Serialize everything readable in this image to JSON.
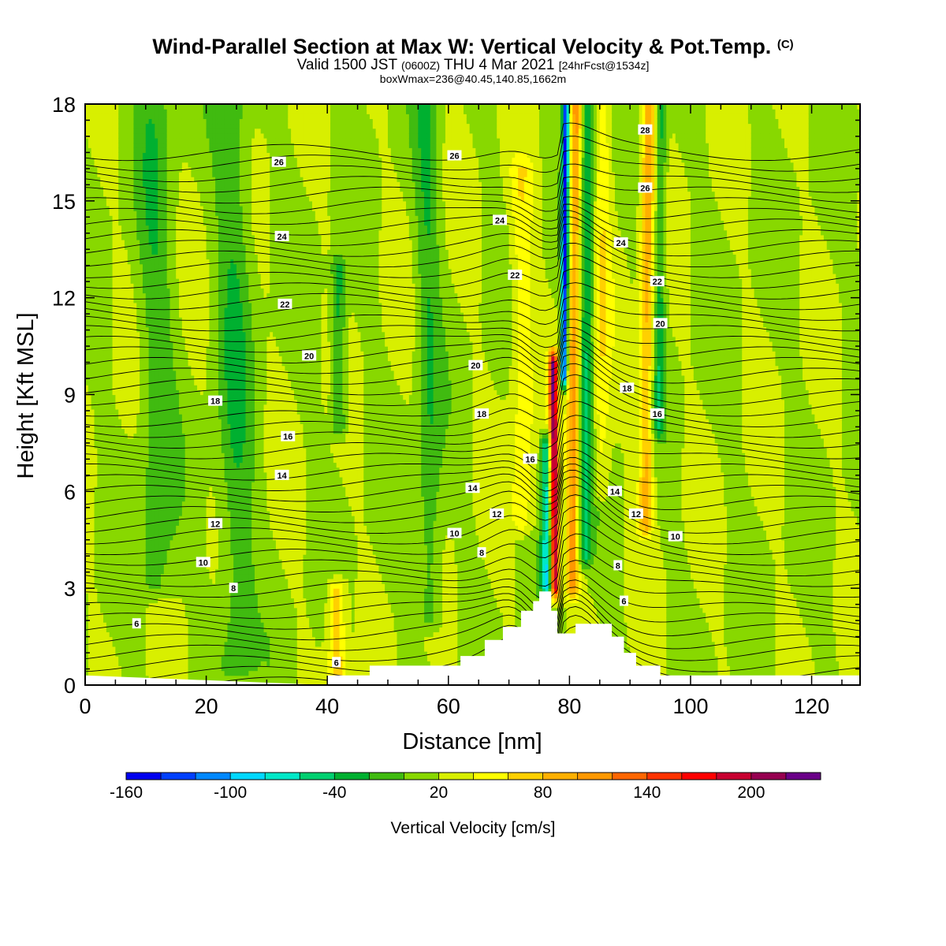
{
  "titles": {
    "main": "Wind-Parallel Section at Max W: Vertical Velocity & Pot.Temp.",
    "main_suffix": "(C)",
    "valid_a": "Valid 1500 JST",
    "valid_zulu": "(0600Z)",
    "valid_b": "THU 4 Mar 2021",
    "valid_fcst": "[24hrFcst@1534z]",
    "box": "boxWmax=236@40.45,140.85,1662m"
  },
  "chart_data": {
    "type": "heatmap",
    "title": "Wind-Parallel Section at Max W: Vertical Velocity & Pot.Temp.",
    "xlabel": "Distance [nm]",
    "ylabel": "Height [Kft MSL]",
    "xlim": [
      0,
      128
    ],
    "ylim": [
      0,
      18
    ],
    "xticks": [
      0,
      20,
      40,
      60,
      80,
      100,
      120
    ],
    "yticks": [
      0,
      3,
      6,
      9,
      12,
      15,
      18
    ],
    "colorbar": {
      "label": "Vertical Velocity [cm/s]",
      "levels": [
        -160,
        -140,
        -120,
        -100,
        -80,
        -60,
        -40,
        -20,
        0,
        20,
        40,
        60,
        80,
        100,
        120,
        140,
        160,
        180,
        200,
        220,
        240
      ],
      "tick_labels": [
        "-160",
        "-100",
        "-40",
        "20",
        "80",
        "140",
        "200"
      ],
      "tick_values": [
        -160,
        -100,
        -40,
        20,
        80,
        140,
        200
      ],
      "colors": [
        "#0000ef",
        "#0040ff",
        "#0088ff",
        "#00d8ff",
        "#00e8c8",
        "#00d070",
        "#00b030",
        "#40bb10",
        "#88d800",
        "#d8ef00",
        "#ffff00",
        "#ffd000",
        "#ffb000",
        "#ff9800",
        "#ff6600",
        "#ff3300",
        "#ff0000",
        "#c80030",
        "#960050",
        "#6a0088"
      ]
    },
    "terrain": [
      [
        40,
        0.3
      ],
      [
        47,
        0.3
      ],
      [
        47,
        0.6
      ],
      [
        62,
        0.6
      ],
      [
        62,
        0.9
      ],
      [
        66,
        0.9
      ],
      [
        66,
        1.4
      ],
      [
        69,
        1.4
      ],
      [
        69,
        1.8
      ],
      [
        72,
        1.8
      ],
      [
        72,
        2.3
      ],
      [
        74,
        2.3
      ],
      [
        74,
        2.6
      ],
      [
        75,
        2.6
      ],
      [
        75,
        2.9
      ],
      [
        77,
        2.9
      ],
      [
        77,
        2.3
      ],
      [
        78,
        2.3
      ],
      [
        78,
        1.6
      ],
      [
        81,
        1.6
      ],
      [
        81,
        1.9
      ],
      [
        87,
        1.9
      ],
      [
        87,
        1.5
      ],
      [
        89,
        1.5
      ],
      [
        89,
        1.0
      ],
      [
        91,
        1.0
      ],
      [
        91,
        0.6
      ],
      [
        95,
        0.6
      ],
      [
        95,
        0.3
      ],
      [
        128,
        0.3
      ]
    ],
    "velocity_bands": [
      {
        "x": 78.8,
        "w": 0.55,
        "amp": -160,
        "zmin": 9.5,
        "zmax": 18
      },
      {
        "x": 77.6,
        "w": 0.7,
        "amp": 190,
        "zmin": 3,
        "zmax": 10
      },
      {
        "x": 76.3,
        "w": 0.9,
        "amp": -90,
        "zmin": 3,
        "zmax": 7.5
      },
      {
        "x": 80.5,
        "w": 1.0,
        "amp": 90,
        "zmin": 3,
        "zmax": 18
      },
      {
        "x": 82.5,
        "w": 1.2,
        "amp": -60,
        "zmin": 4,
        "zmax": 18
      },
      {
        "x": 92.5,
        "w": 1.2,
        "amp": 70,
        "zmin": 5,
        "zmax": 18
      },
      {
        "x": 94.5,
        "w": 1.0,
        "amp": -50,
        "zmin": 8,
        "zmax": 18
      },
      {
        "x": 85,
        "w": 1.5,
        "amp": 35,
        "zmin": 6,
        "zmax": 18
      },
      {
        "x": 72.5,
        "w": 2.0,
        "amp": 35,
        "zmin": 5,
        "zmax": 16
      },
      {
        "x": 41.5,
        "w": 1.5,
        "amp": 60,
        "zmin": 0.3,
        "zmax": 3
      },
      {
        "x": 42.2,
        "w": 1.2,
        "amp": -50,
        "zmin": 8,
        "zmax": 13
      },
      {
        "x": 25,
        "w": 3.0,
        "amp": -35,
        "zmin": 0.5,
        "zmax": 18
      },
      {
        "x": 12,
        "w": 3.0,
        "amp": -30,
        "zmin": 3,
        "zmax": 18
      },
      {
        "x": 57,
        "w": 2.0,
        "amp": -35,
        "zmin": 2,
        "zmax": 18
      }
    ],
    "theta_contours": {
      "levels_c": [
        6,
        8,
        10,
        12,
        14,
        16,
        18,
        20,
        22,
        24,
        26,
        28
      ],
      "labels": [
        {
          "text": "6",
          "x": 8.5,
          "z": 1.9
        },
        {
          "text": "8",
          "x": 24.5,
          "z": 3.0
        },
        {
          "text": "10",
          "x": 19.5,
          "z": 3.8
        },
        {
          "text": "12",
          "x": 21.5,
          "z": 5.0
        },
        {
          "text": "14",
          "x": 32.5,
          "z": 6.5
        },
        {
          "text": "16",
          "x": 33.5,
          "z": 7.7
        },
        {
          "text": "18",
          "x": 21.5,
          "z": 8.8
        },
        {
          "text": "20",
          "x": 37,
          "z": 10.2
        },
        {
          "text": "22",
          "x": 33,
          "z": 11.8
        },
        {
          "text": "24",
          "x": 32.5,
          "z": 13.9
        },
        {
          "text": "26",
          "x": 32,
          "z": 16.2
        },
        {
          "text": "26",
          "x": 61,
          "z": 16.4
        },
        {
          "text": "24",
          "x": 68.5,
          "z": 14.4
        },
        {
          "text": "22",
          "x": 71,
          "z": 12.7
        },
        {
          "text": "20",
          "x": 64.5,
          "z": 9.9
        },
        {
          "text": "18",
          "x": 65.5,
          "z": 8.4
        },
        {
          "text": "16",
          "x": 73.5,
          "z": 7.0
        },
        {
          "text": "14",
          "x": 64,
          "z": 6.1
        },
        {
          "text": "12",
          "x": 68,
          "z": 5.3
        },
        {
          "text": "10",
          "x": 61,
          "z": 4.7
        },
        {
          "text": "8",
          "x": 65.5,
          "z": 4.1
        },
        {
          "text": "6",
          "x": 41.5,
          "z": 0.7
        },
        {
          "text": "28",
          "x": 92.5,
          "z": 17.2
        },
        {
          "text": "26",
          "x": 92.5,
          "z": 15.4
        },
        {
          "text": "24",
          "x": 88.5,
          "z": 13.7
        },
        {
          "text": "22",
          "x": 94.5,
          "z": 12.5
        },
        {
          "text": "20",
          "x": 95,
          "z": 11.2
        },
        {
          "text": "18",
          "x": 89.5,
          "z": 9.2
        },
        {
          "text": "16",
          "x": 94.5,
          "z": 8.4
        },
        {
          "text": "14",
          "x": 87.5,
          "z": 6.0
        },
        {
          "text": "12",
          "x": 91,
          "z": 5.3
        },
        {
          "text": "10",
          "x": 97.5,
          "z": 4.6
        },
        {
          "text": "8",
          "x": 88,
          "z": 3.7
        },
        {
          "text": "6",
          "x": 89,
          "z": 2.6
        }
      ]
    }
  }
}
